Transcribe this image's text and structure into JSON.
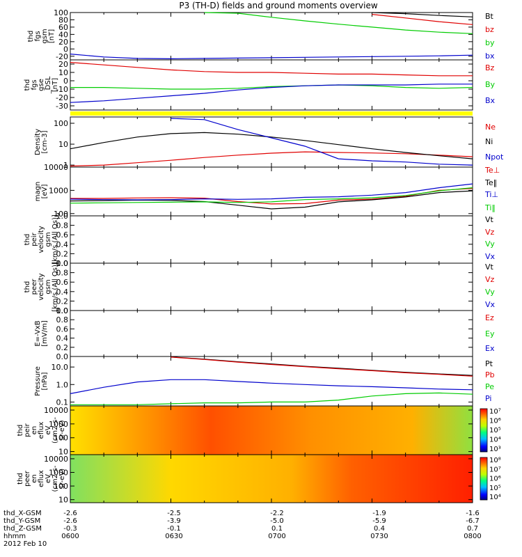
{
  "title": "P3 (TH-D) fields and ground moments overview",
  "colors": {
    "black": "#000000",
    "red": "#e00000",
    "green": "#00cc00",
    "blue": "#0000cc",
    "yellow": "#ffff00"
  },
  "footer": {
    "rows": [
      {
        "label": "thd_X-GSM",
        "values": [
          "-2.6",
          "-2.5",
          "-2.2",
          "-1.9",
          "-1.6"
        ]
      },
      {
        "label": "thd_Y-GSM",
        "values": [
          "-2.6",
          "-3.9",
          "-5.0",
          "-5.9",
          "-6.7"
        ]
      },
      {
        "label": "thd_Z-GSM",
        "values": [
          "-0.3",
          "-0.1",
          "0.1",
          "0.4",
          "0.7"
        ]
      },
      {
        "label": "hhmm",
        "values": [
          "0600",
          "0630",
          "0700",
          "0730",
          "0800"
        ]
      }
    ],
    "date": "2012 Feb 10"
  },
  "chart_data": [
    {
      "type": "line",
      "ylabel": [
        "thd",
        "fgs",
        "gsm",
        "[nT]"
      ],
      "ylim": [
        -30,
        100
      ],
      "yticks": [
        "100",
        "80",
        "60",
        "40",
        "20",
        "0",
        "-20"
      ],
      "ytick_values": [
        100,
        80,
        60,
        40,
        20,
        0,
        -20
      ],
      "x": [
        0,
        10,
        20,
        30,
        40,
        50,
        60,
        70,
        80,
        90,
        100,
        110,
        120
      ],
      "series": [
        {
          "name": "Bt",
          "color": "#000000",
          "values": [
            null,
            null,
            null,
            null,
            null,
            null,
            null,
            null,
            null,
            102,
            97,
            92,
            88
          ]
        },
        {
          "name": "bz",
          "color": "#e00000",
          "values": [
            null,
            null,
            null,
            null,
            null,
            null,
            null,
            null,
            null,
            95,
            85,
            75,
            67
          ]
        },
        {
          "name": "by",
          "color": "#00cc00",
          "values": [
            null,
            null,
            null,
            null,
            110,
            98,
            87,
            77,
            68,
            60,
            52,
            46,
            42
          ]
        },
        {
          "name": "bx",
          "color": "#0000cc",
          "values": [
            -14,
            -22,
            -26,
            -27,
            -26,
            -25,
            -24,
            -23,
            -22,
            -21,
            -20,
            -19,
            -17
          ]
        }
      ]
    },
    {
      "type": "line",
      "ylabel": [
        "thd",
        "fgs",
        "gse",
        "_DSL",
        "[nT]"
      ],
      "ylim": [
        -35,
        25
      ],
      "yticks": [
        "20",
        "10",
        "0",
        "-10",
        "-20",
        "-30"
      ],
      "ytick_values": [
        20,
        10,
        0,
        -10,
        -20,
        -30
      ],
      "x": [
        0,
        10,
        20,
        30,
        40,
        50,
        60,
        70,
        80,
        90,
        100,
        110,
        120
      ],
      "series": [
        {
          "name": "Bz",
          "color": "#e00000",
          "values": [
            22,
            19,
            16,
            13,
            11,
            10,
            10,
            9,
            8,
            8,
            7,
            6,
            6
          ]
        },
        {
          "name": "By",
          "color": "#00cc00",
          "values": [
            -8,
            -8,
            -9,
            -10,
            -10,
            -9,
            -7,
            -6,
            -5,
            -6,
            -8,
            -9,
            -8
          ]
        },
        {
          "name": "Bx",
          "color": "#0000cc",
          "values": [
            -26,
            -24,
            -21,
            -18,
            -15,
            -11,
            -8,
            -6,
            -5,
            -5,
            -5,
            -4,
            -4
          ]
        }
      ]
    },
    {
      "type": "line",
      "ylabel": [
        "Density",
        "[cm-3]"
      ],
      "yscale": "log",
      "ylim": [
        0.8,
        200
      ],
      "yticks": [
        "100",
        "10",
        "1"
      ],
      "ytick_values": [
        100,
        10,
        1
      ],
      "x": [
        0,
        10,
        20,
        30,
        40,
        50,
        60,
        70,
        80,
        90,
        100,
        110,
        120
      ],
      "series": [
        {
          "name": "Ne",
          "color": "#e00000",
          "values": [
            0.9,
            1.0,
            1.3,
            1.7,
            2.3,
            3.0,
            3.7,
            4.3,
            4.0,
            3.8,
            3.5,
            3.0,
            2.5
          ]
        },
        {
          "name": "Ni",
          "color": "#000000",
          "values": [
            6.0,
            12,
            22,
            32,
            36,
            30,
            22,
            15,
            9.5,
            6.0,
            4.0,
            2.8,
            2.0
          ]
        },
        {
          "name": "Npot",
          "color": "#0000cc",
          "values": [
            null,
            null,
            null,
            170,
            150,
            50,
            20,
            8,
            2.0,
            1.6,
            1.4,
            1.1,
            1.0
          ]
        }
      ]
    },
    {
      "type": "line",
      "ylabel": [
        "magn",
        "[eV]"
      ],
      "yscale": "log",
      "ylim": [
        80,
        10000
      ],
      "yticks": [
        "10000",
        "1000",
        "100"
      ],
      "ytick_values": [
        10000,
        1000,
        100
      ],
      "x": [
        0,
        10,
        20,
        30,
        40,
        50,
        60,
        70,
        80,
        90,
        100,
        110,
        120
      ],
      "series": [
        {
          "name": "Te⊥",
          "color": "#e00000",
          "values": [
            450,
            450,
            470,
            480,
            460,
            330,
            260,
            270,
            380,
            420,
            560,
            1000,
            1200
          ]
        },
        {
          "name": "Te‖",
          "color": "#000000",
          "values": [
            350,
            360,
            380,
            370,
            330,
            230,
            160,
            190,
            320,
            390,
            520,
            800,
            950
          ]
        },
        {
          "name": "Ti⊥",
          "color": "#0000cc",
          "values": [
            420,
            400,
            390,
            400,
            430,
            410,
            430,
            500,
            530,
            620,
            800,
            1300,
            1900
          ]
        },
        {
          "name": "Ti‖",
          "color": "#00cc00",
          "values": [
            280,
            290,
            300,
            310,
            320,
            300,
            320,
            400,
            430,
            480,
            600,
            950,
            1300
          ]
        }
      ]
    },
    {
      "type": "line",
      "ylabel": [
        "thd",
        "peir",
        "velocity",
        "gsm",
        "[km/s (All Qs)]"
      ],
      "ylim": [
        0,
        1
      ],
      "yticks": [
        "1.0",
        "0.8",
        "0.6",
        "0.4",
        "0.2",
        "0.0"
      ],
      "ytick_values": [
        1.0,
        0.8,
        0.6,
        0.4,
        0.2,
        0.0
      ],
      "series": [
        {
          "name": "Vt",
          "color": "#000000",
          "values": []
        },
        {
          "name": "Vz",
          "color": "#e00000",
          "values": []
        },
        {
          "name": "Vy",
          "color": "#00cc00",
          "values": []
        },
        {
          "name": "Vx",
          "color": "#0000cc",
          "values": []
        }
      ]
    },
    {
      "type": "line",
      "ylabel": [
        "thd",
        "peer",
        "velocity",
        "gsm",
        "[km/s (All Qs)]"
      ],
      "ylim": [
        0,
        1
      ],
      "yticks": [
        "1.0",
        "0.8",
        "0.6",
        "0.4",
        "0.2",
        "0.0"
      ],
      "ytick_values": [
        1.0,
        0.8,
        0.6,
        0.4,
        0.2,
        0.0
      ],
      "series": [
        {
          "name": "Vt",
          "color": "#000000",
          "values": []
        },
        {
          "name": "Vz",
          "color": "#e00000",
          "values": []
        },
        {
          "name": "Vy",
          "color": "#00cc00",
          "values": []
        },
        {
          "name": "Vx",
          "color": "#0000cc",
          "values": []
        }
      ]
    },
    {
      "type": "line",
      "ylabel": [
        "E=-VxB",
        "[mV/m]"
      ],
      "ylim": [
        0,
        1
      ],
      "yticks": [
        "1.0",
        "0.8",
        "0.6",
        "0.4",
        "0.2",
        "0.0"
      ],
      "ytick_values": [
        1.0,
        0.8,
        0.6,
        0.4,
        0.2,
        0.0
      ],
      "series": [
        {
          "name": "Ez",
          "color": "#e00000",
          "values": []
        },
        {
          "name": "Ey",
          "color": "#00cc00",
          "values": []
        },
        {
          "name": "Ex",
          "color": "#0000cc",
          "values": []
        }
      ]
    },
    {
      "type": "line",
      "ylabel": [
        "Pressure",
        "[nPa]"
      ],
      "yscale": "log",
      "ylim": [
        0.06,
        40
      ],
      "yticks": [
        "10.0",
        "1.0",
        "0.1"
      ],
      "ytick_values": [
        10,
        1,
        0.1
      ],
      "x": [
        0,
        10,
        20,
        30,
        40,
        50,
        60,
        70,
        80,
        90,
        100,
        110,
        120
      ],
      "series": [
        {
          "name": "Pt",
          "color": "#000000",
          "values": [
            null,
            null,
            null,
            38,
            28,
            20,
            15,
            11,
            8.5,
            6.5,
            5.0,
            4.0,
            3.3
          ]
        },
        {
          "name": "Pb",
          "color": "#e00000",
          "values": [
            null,
            null,
            null,
            37,
            27,
            19,
            14,
            10.5,
            8.0,
            6.2,
            4.7,
            3.8,
            3.0
          ]
        },
        {
          "name": "Pe",
          "color": "#00cc00",
          "values": [
            0.07,
            0.07,
            0.07,
            0.08,
            0.09,
            0.09,
            0.1,
            0.1,
            0.13,
            0.22,
            0.3,
            0.33,
            0.28
          ]
        },
        {
          "name": "Pi",
          "color": "#0000cc",
          "values": [
            0.3,
            0.7,
            1.4,
            1.9,
            1.9,
            1.5,
            1.2,
            1.0,
            0.85,
            0.75,
            0.65,
            0.55,
            0.5
          ]
        }
      ]
    },
    {
      "type": "heatmap",
      "ylabel": [
        "thd",
        "peir",
        "en",
        "eflux",
        "eV",
        "(cm2-s-",
        "sr-eV)"
      ],
      "yscale": "log",
      "ylim": [
        6,
        20000
      ],
      "yticks": [
        "10000",
        "1000",
        "100",
        "10"
      ],
      "ytick_values": [
        10000,
        1000,
        100,
        10
      ],
      "colorbar": {
        "labels": [
          "10⁷",
          "10⁶",
          "10⁵",
          "10⁴",
          "10³"
        ],
        "values": [
          7,
          6,
          5,
          4,
          3
        ]
      }
    },
    {
      "type": "heatmap",
      "ylabel": [
        "thd",
        "peer",
        "en",
        "eflux",
        "eV",
        "(cm2-s-",
        "sr-eV)"
      ],
      "yscale": "log",
      "ylim": [
        6,
        20000
      ],
      "yticks": [
        "10000",
        "1000",
        "100",
        "10"
      ],
      "ytick_values": [
        10000,
        1000,
        100,
        10
      ],
      "colorbar": {
        "labels": [
          "10⁸",
          "10⁷",
          "10⁶",
          "10⁵",
          "10⁴"
        ],
        "values": [
          8,
          7,
          6,
          5,
          4
        ]
      }
    }
  ]
}
